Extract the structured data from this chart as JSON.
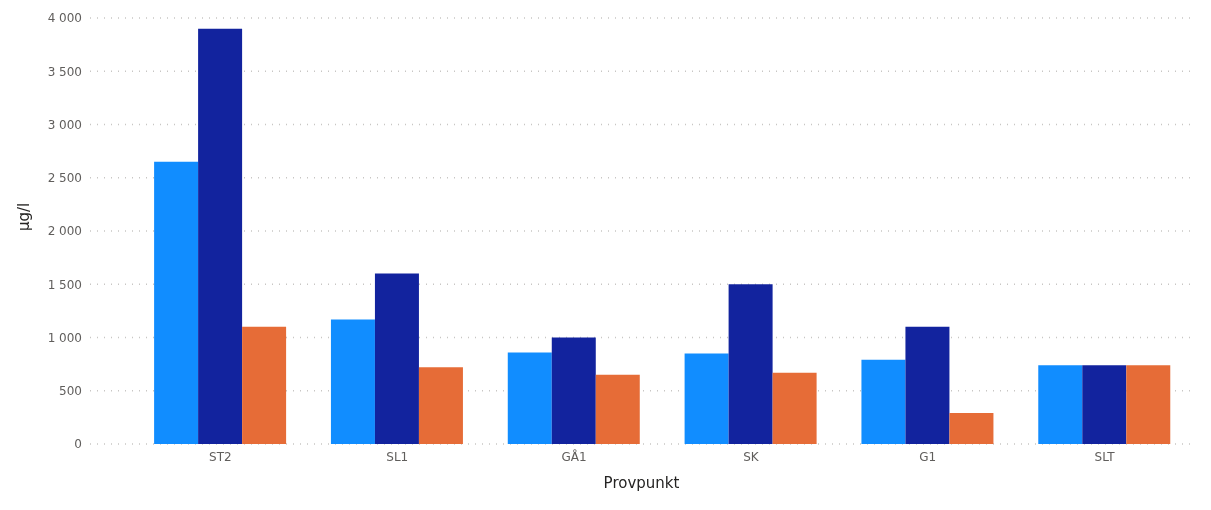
{
  "chart_data": {
    "type": "bar",
    "xlabel": "Provpunkt",
    "ylabel": "µg/l",
    "categories": [
      "ST2",
      "SL1",
      "GÅ1",
      "SK",
      "G1",
      "SLT"
    ],
    "series": [
      {
        "color": "#118dff",
        "values": [
          2650,
          1170,
          860,
          850,
          790,
          740
        ]
      },
      {
        "color": "#12239e",
        "values": [
          3900,
          1600,
          1000,
          1500,
          1100,
          740
        ]
      },
      {
        "color": "#e66c37",
        "values": [
          1100,
          720,
          650,
          670,
          290,
          740
        ]
      }
    ],
    "ylim": [
      0,
      4000
    ],
    "yticks": [
      {
        "value": 0,
        "label": "0"
      },
      {
        "value": 500,
        "label": "500"
      },
      {
        "value": 1000,
        "label": "1 000"
      },
      {
        "value": 1500,
        "label": "1 500"
      },
      {
        "value": 2000,
        "label": "2 000"
      },
      {
        "value": 2500,
        "label": "2 500"
      },
      {
        "value": 3000,
        "label": "3 000"
      },
      {
        "value": 3500,
        "label": "3 500"
      },
      {
        "value": 4000,
        "label": "4 000"
      }
    ],
    "grid": "y",
    "legend": false
  }
}
